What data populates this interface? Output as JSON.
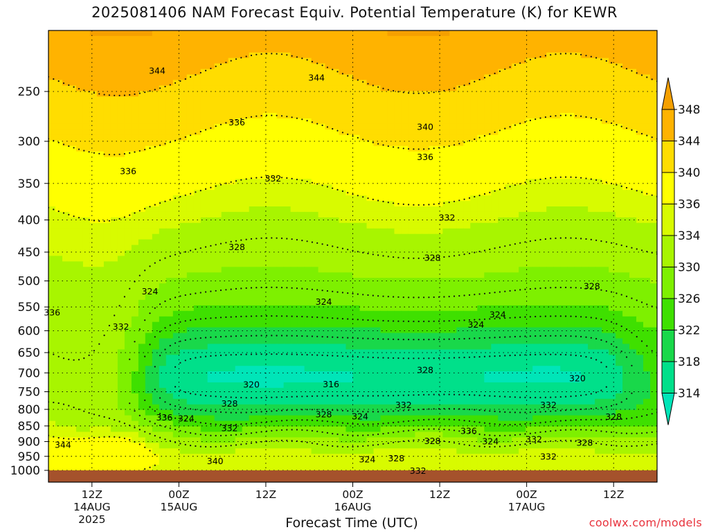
{
  "title": "2025081406 NAM Forecast Equiv. Potential Temperature (K) for KEWR",
  "xlabel": "Forecast Time (UTC)",
  "credit": "coolwx.com/models",
  "chart_data": {
    "type": "heatmap",
    "title": "2025081406 NAM Forecast Equiv. Potential Temperature (K) for KEWR",
    "xlabel": "Forecast Time (UTC)",
    "ylabel": "",
    "x_ticks": [
      {
        "label": [
          "12Z",
          "14AUG",
          "2025"
        ],
        "hours": 6
      },
      {
        "label": [
          "00Z",
          "15AUG"
        ],
        "hours": 18
      },
      {
        "label": [
          "12Z"
        ],
        "hours": 30
      },
      {
        "label": [
          "00Z",
          "16AUG"
        ],
        "hours": 42
      },
      {
        "label": [
          "12Z"
        ],
        "hours": 54
      },
      {
        "label": [
          "00Z",
          "17AUG"
        ],
        "hours": 66
      },
      {
        "label": [
          "12Z"
        ],
        "hours": 78
      }
    ],
    "x_range_hours": [
      0,
      84
    ],
    "y_ticks": [
      250,
      300,
      350,
      400,
      450,
      500,
      550,
      600,
      650,
      700,
      750,
      800,
      850,
      900,
      950,
      1000
    ],
    "y_range_hPa": [
      200,
      1000
    ],
    "y_scale": "log",
    "colorbar": {
      "levels": [
        314,
        318,
        322,
        326,
        330,
        334,
        336,
        340,
        344,
        348
      ],
      "labels": [
        "314",
        "318",
        "322",
        "326",
        "330",
        "334",
        "336",
        "340",
        "344",
        "348"
      ],
      "colors": [
        "#00e5b8",
        "#00e08a",
        "#19d84a",
        "#3fe000",
        "#7ef000",
        "#a8f500",
        "#d8fb00",
        "#ffff00",
        "#ffdd00",
        "#ffb300",
        "#f5a000"
      ]
    },
    "contour_labels": [
      {
        "text": "344",
        "hours": 15,
        "p": 232
      },
      {
        "text": "344",
        "hours": 37,
        "p": 238
      },
      {
        "text": "340",
        "hours": 52,
        "p": 285
      },
      {
        "text": "336",
        "hours": 26,
        "p": 280
      },
      {
        "text": "336",
        "hours": 11,
        "p": 335
      },
      {
        "text": "336",
        "hours": 52,
        "p": 318
      },
      {
        "text": "332",
        "hours": 31,
        "p": 344
      },
      {
        "text": "332",
        "hours": 55,
        "p": 397
      },
      {
        "text": "328",
        "hours": 26,
        "p": 442
      },
      {
        "text": "328",
        "hours": 53,
        "p": 460
      },
      {
        "text": "328",
        "hours": 75,
        "p": 510
      },
      {
        "text": "324",
        "hours": 14,
        "p": 520
      },
      {
        "text": "324",
        "hours": 38,
        "p": 540
      },
      {
        "text": "324",
        "hours": 62,
        "p": 566
      },
      {
        "text": "324",
        "hours": 59,
        "p": 587
      },
      {
        "text": "336",
        "hours": 0.5,
        "p": 562
      },
      {
        "text": "332",
        "hours": 10,
        "p": 592
      },
      {
        "text": "328",
        "hours": 52,
        "p": 693
      },
      {
        "text": "320",
        "hours": 28,
        "p": 731
      },
      {
        "text": "316",
        "hours": 39,
        "p": 730
      },
      {
        "text": "320",
        "hours": 73,
        "p": 715
      },
      {
        "text": "328",
        "hours": 25,
        "p": 784
      },
      {
        "text": "332",
        "hours": 49,
        "p": 788
      },
      {
        "text": "332",
        "hours": 69,
        "p": 788
      },
      {
        "text": "328",
        "hours": 38,
        "p": 815
      },
      {
        "text": "324",
        "hours": 43,
        "p": 822
      },
      {
        "text": "336",
        "hours": 16,
        "p": 825
      },
      {
        "text": "324",
        "hours": 19,
        "p": 828
      },
      {
        "text": "332",
        "hours": 25,
        "p": 858
      },
      {
        "text": "336",
        "hours": 58,
        "p": 867
      },
      {
        "text": "328",
        "hours": 78,
        "p": 823
      },
      {
        "text": "328",
        "hours": 53,
        "p": 899
      },
      {
        "text": "324",
        "hours": 61,
        "p": 900
      },
      {
        "text": "332",
        "hours": 67,
        "p": 893
      },
      {
        "text": "328",
        "hours": 74,
        "p": 905
      },
      {
        "text": "344",
        "hours": 2,
        "p": 912
      },
      {
        "text": "340",
        "hours": 23,
        "p": 968
      },
      {
        "text": "324",
        "hours": 44,
        "p": 962
      },
      {
        "text": "328",
        "hours": 48,
        "p": 958
      },
      {
        "text": "332",
        "hours": 69,
        "p": 952
      },
      {
        "text": "332",
        "hours": 51,
        "p": 1002
      }
    ],
    "grid": true,
    "legend": "right colorbar"
  }
}
